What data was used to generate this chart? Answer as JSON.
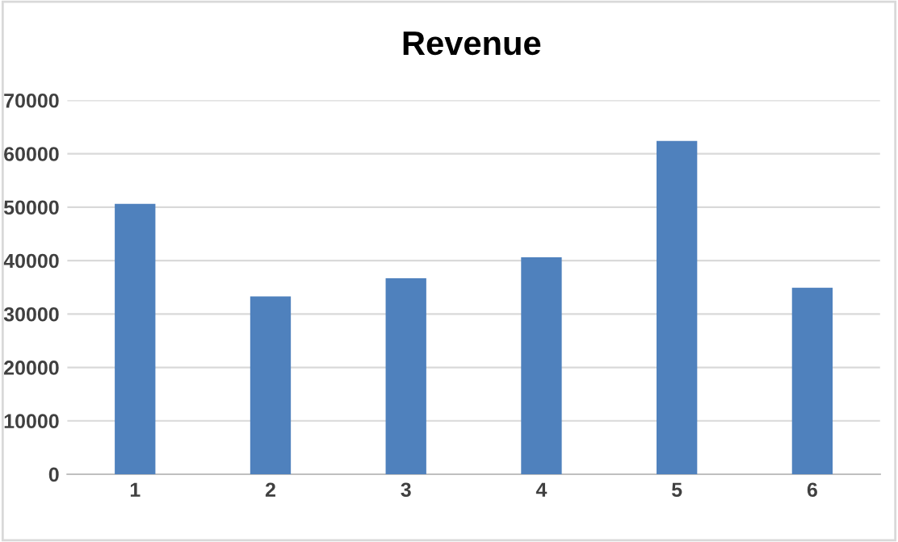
{
  "chart_data": {
    "type": "bar",
    "title": "Revenue",
    "categories": [
      "1",
      "2",
      "3",
      "4",
      "5",
      "6"
    ],
    "values": [
      50600,
      33300,
      36700,
      40600,
      62400,
      34900
    ],
    "color": "#4f81bd",
    "ylim": [
      0,
      70000
    ],
    "yticks": [
      0,
      10000,
      20000,
      30000,
      40000,
      50000,
      60000,
      70000
    ],
    "grid": "y"
  }
}
